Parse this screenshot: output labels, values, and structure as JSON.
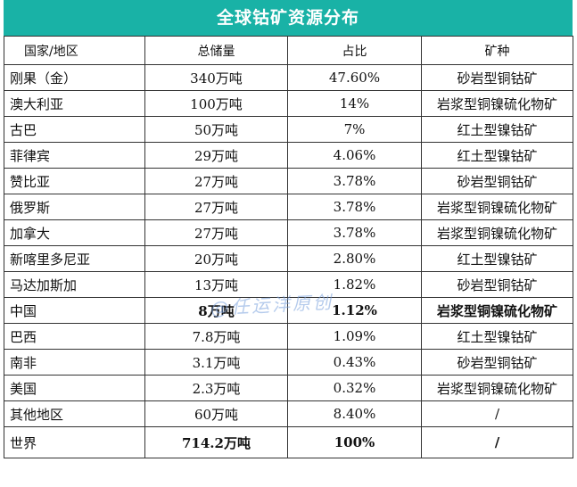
{
  "title": "全球钴矿资源分布",
  "headers": [
    "国家/地区",
    "总储量",
    "占比",
    "矿种"
  ],
  "rows": [
    {
      "region": "刚果（金）",
      "reserve": "340万吨",
      "share": "47.60%",
      "type": "砂岩型铜钴矿",
      "bold": false
    },
    {
      "region": "澳大利亚",
      "reserve": "100万吨",
      "share": "14%",
      "type": "岩浆型铜镍硫化物矿",
      "bold": false
    },
    {
      "region": "古巴",
      "reserve": "50万吨",
      "share": "7%",
      "type": "红土型镍钴矿",
      "bold": false
    },
    {
      "region": "菲律宾",
      "reserve": "29万吨",
      "share": "4.06%",
      "type": "红土型镍钴矿",
      "bold": false
    },
    {
      "region": "赞比亚",
      "reserve": "27万吨",
      "share": "3.78%",
      "type": "砂岩型铜钴矿",
      "bold": false
    },
    {
      "region": "俄罗斯",
      "reserve": "27万吨",
      "share": "3.78%",
      "type": "岩浆型铜镍硫化物矿",
      "bold": false
    },
    {
      "region": "加拿大",
      "reserve": "27万吨",
      "share": "3.78%",
      "type": "岩浆型铜镍硫化物矿",
      "bold": false
    },
    {
      "region": "新喀里多尼亚",
      "reserve": "20万吨",
      "share": "2.80%",
      "type": "红土型镍钴矿",
      "bold": false
    },
    {
      "region": "马达加斯加",
      "reserve": "13万吨",
      "share": "1.82%",
      "type": "砂岩型铜钴矿",
      "bold": false
    },
    {
      "region": "中国",
      "reserve": "8万吨",
      "share": "1.12%",
      "type": "岩浆型铜镍硫化物矿",
      "bold": true
    },
    {
      "region": "巴西",
      "reserve": "7.8万吨",
      "share": "1.09%",
      "type": "红土型镍钴矿",
      "bold": false
    },
    {
      "region": "南非",
      "reserve": "3.1万吨",
      "share": "0.43%",
      "type": "砂岩型铜钴矿",
      "bold": false
    },
    {
      "region": "美国",
      "reserve": "2.3万吨",
      "share": "0.32%",
      "type": "岩浆型铜镍硫化物矿",
      "bold": false
    },
    {
      "region": "其他地区",
      "reserve": "60万吨",
      "share": "8.40%",
      "type": "/",
      "bold": false
    },
    {
      "region": "世界",
      "reserve": "714.2万吨",
      "share": "100%",
      "type": "/",
      "bold": true
    }
  ],
  "watermark": "@任运洋原创"
}
